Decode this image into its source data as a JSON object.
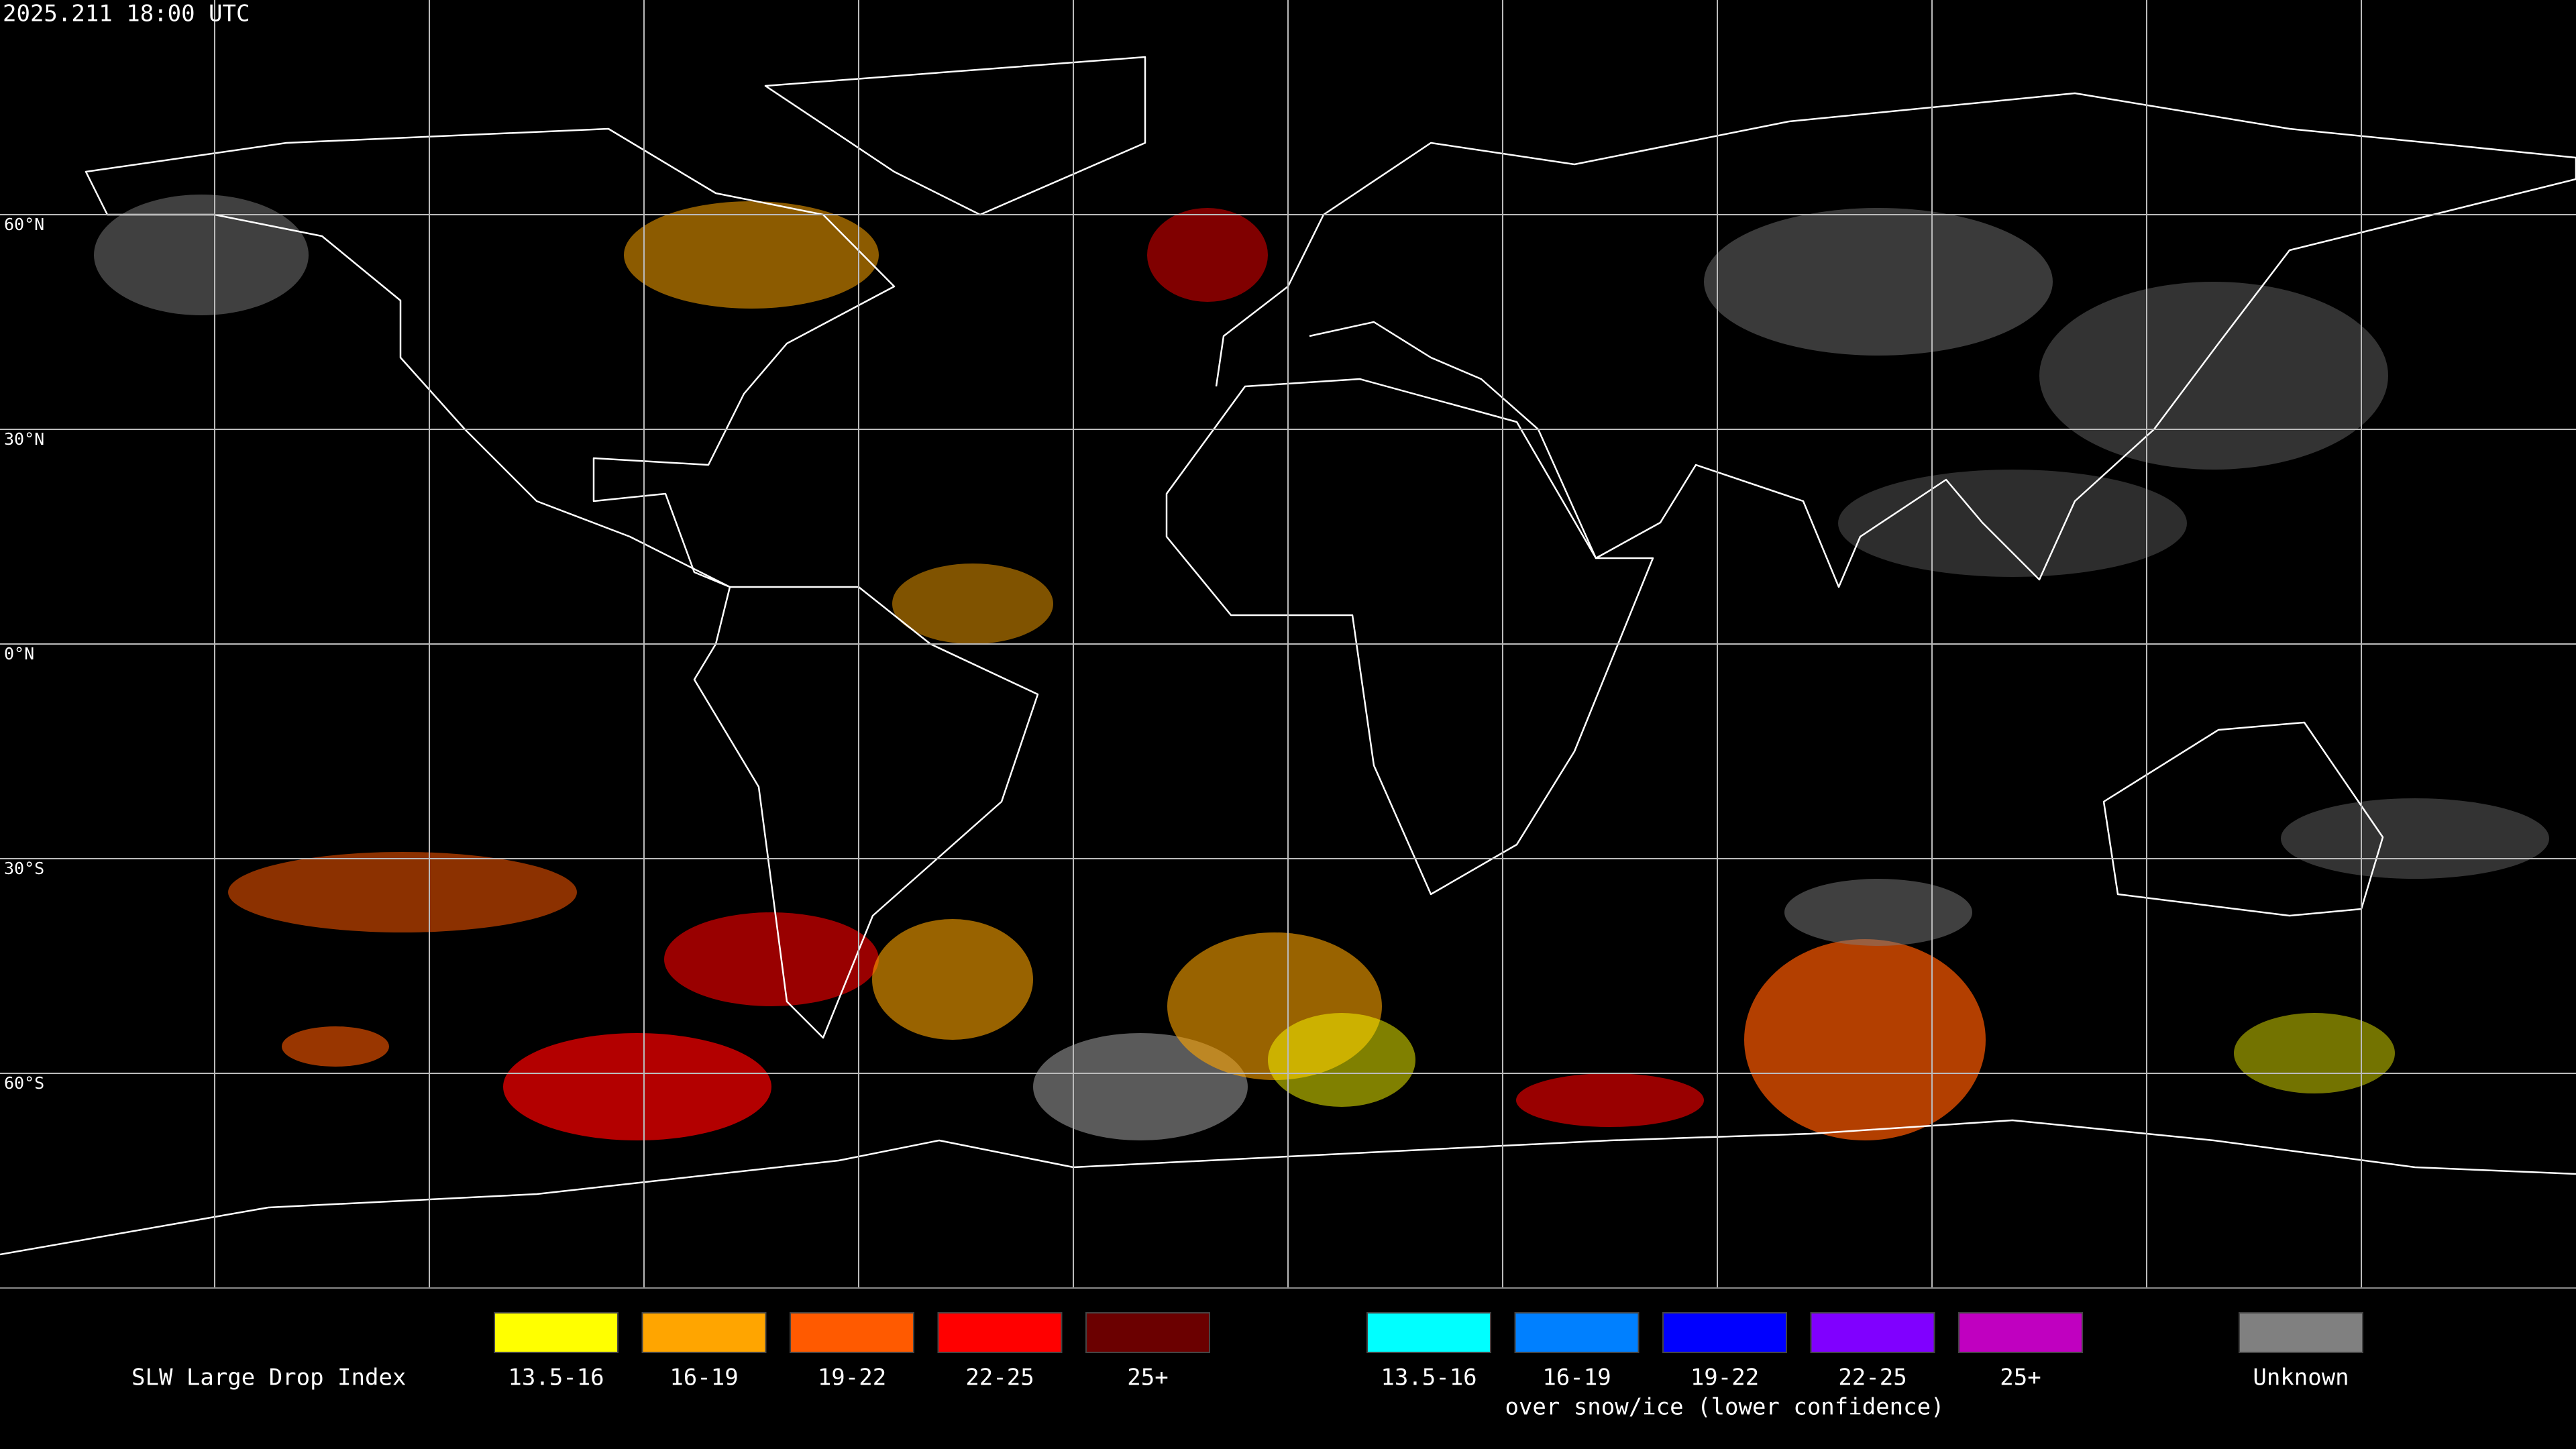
{
  "timestamp": "2025.211 18:00 UTC",
  "latitude_labels": [
    "60°N",
    "30°N",
    "0°N",
    "30°S",
    "60°S"
  ],
  "legend": {
    "title": "SLW Large Drop Index",
    "groups": [
      {
        "items": [
          {
            "label": "13.5-16",
            "color": "#ffff00"
          },
          {
            "label": "16-19",
            "color": "#ffa500"
          },
          {
            "label": "19-22",
            "color": "#ff5a00"
          },
          {
            "label": "22-25",
            "color": "#ff0000"
          },
          {
            "label": "25+",
            "color": "#6b0000"
          }
        ]
      },
      {
        "items": [
          {
            "label": "13.5-16",
            "color": "#00ffff"
          },
          {
            "label": "16-19",
            "color": "#0080ff"
          },
          {
            "label": "19-22",
            "color": "#0000ff"
          },
          {
            "label": "22-25",
            "color": "#8000ff"
          },
          {
            "label": "25+",
            "color": "#c000c0"
          }
        ],
        "caption": "over snow/ice (lower confidence)"
      },
      {
        "items": [
          {
            "label": "Unknown",
            "color": "#808080"
          }
        ]
      }
    ]
  }
}
